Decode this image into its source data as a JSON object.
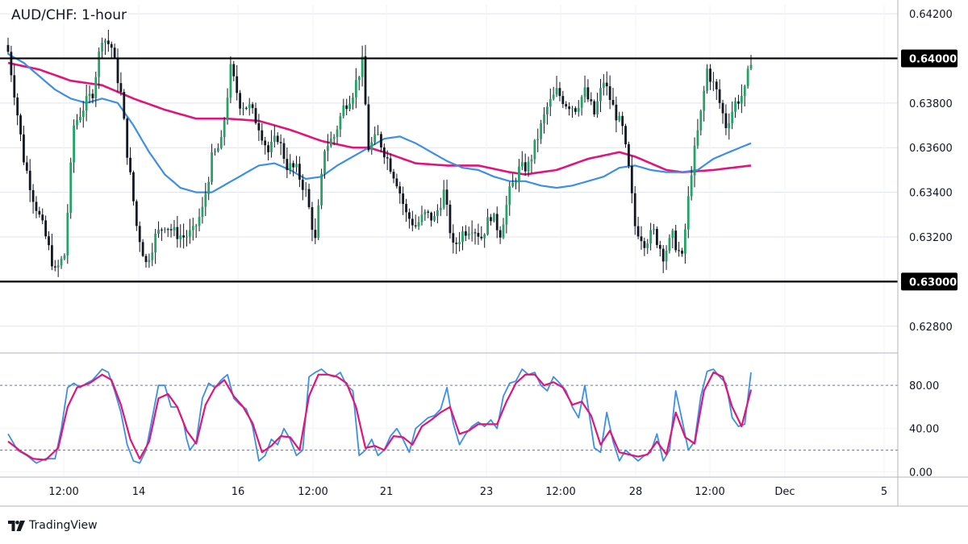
{
  "chart_title": "AUD/CHF: 1-hour",
  "brand": "TradingView",
  "colors": {
    "candle_up": "#26a269",
    "candle_down": "#131722",
    "ma_fast": "#3d8fe6",
    "ma_slow": "#e0157a",
    "stoch_k": "#3d8fe6",
    "stoch_d": "#e0157a",
    "level_line": "#000000",
    "grid": "#e0e3eb"
  },
  "chart_data": [
    {
      "type": "candlestick",
      "title": "AUD/CHF: 1-hour",
      "ylim": [
        0.6268,
        0.6424
      ],
      "y_ticks": [
        "0.64200",
        "0.63800",
        "0.63600",
        "0.63400",
        "0.63200",
        "0.62800"
      ],
      "x_ticks": [
        "12:00",
        "14",
        "16",
        "12:00",
        "21",
        "23",
        "12:00",
        "28",
        "12:00",
        "Dec",
        "5"
      ],
      "horizontal_levels": [
        {
          "value": 0.64,
          "label": "0.64000"
        },
        {
          "value": 0.63,
          "label": "0.63000"
        }
      ],
      "price_anchors": [
        [
          0,
          0.6403
        ],
        [
          2,
          0.6385
        ],
        [
          5,
          0.6355
        ],
        [
          8,
          0.6338
        ],
        [
          12,
          0.632
        ],
        [
          15,
          0.6304
        ],
        [
          18,
          0.6312
        ],
        [
          21,
          0.637
        ],
        [
          24,
          0.6378
        ],
        [
          27,
          0.6385
        ],
        [
          30,
          0.641
        ],
        [
          33,
          0.6405
        ],
        [
          36,
          0.6384
        ],
        [
          38,
          0.6358
        ],
        [
          41,
          0.6325
        ],
        [
          44,
          0.6308
        ],
        [
          47,
          0.632
        ],
        [
          50,
          0.6326
        ],
        [
          53,
          0.6322
        ],
        [
          56,
          0.632
        ],
        [
          59,
          0.6322
        ],
        [
          62,
          0.6332
        ],
        [
          65,
          0.6355
        ],
        [
          68,
          0.6362
        ],
        [
          71,
          0.6395
        ],
        [
          74,
          0.638
        ],
        [
          77,
          0.6378
        ],
        [
          80,
          0.637
        ],
        [
          83,
          0.6358
        ],
        [
          86,
          0.6365
        ],
        [
          89,
          0.6352
        ],
        [
          92,
          0.635
        ],
        [
          95,
          0.634
        ],
        [
          98,
          0.6318
        ],
        [
          101,
          0.636
        ],
        [
          104,
          0.6365
        ],
        [
          107,
          0.6378
        ],
        [
          110,
          0.6385
        ],
        [
          113,
          0.6398
        ],
        [
          115,
          0.636
        ],
        [
          118,
          0.6365
        ],
        [
          121,
          0.6355
        ],
        [
          124,
          0.6345
        ],
        [
          127,
          0.633
        ],
        [
          130,
          0.6325
        ],
        [
          133,
          0.633
        ],
        [
          136,
          0.6328
        ],
        [
          139,
          0.634
        ],
        [
          142,
          0.6315
        ],
        [
          145,
          0.6322
        ],
        [
          148,
          0.6325
        ],
        [
          151,
          0.632
        ],
        [
          154,
          0.633
        ],
        [
          157,
          0.6322
        ],
        [
          160,
          0.634
        ],
        [
          163,
          0.635
        ],
        [
          166,
          0.6352
        ],
        [
          169,
          0.6365
        ],
        [
          172,
          0.6378
        ],
        [
          175,
          0.6385
        ],
        [
          178,
          0.638
        ],
        [
          181,
          0.6378
        ],
        [
          184,
          0.6385
        ],
        [
          187,
          0.6375
        ],
        [
          190,
          0.639
        ],
        [
          193,
          0.6378
        ],
        [
          196,
          0.6368
        ],
        [
          198,
          0.635
        ],
        [
          200,
          0.6325
        ],
        [
          203,
          0.6318
        ],
        [
          206,
          0.6322
        ],
        [
          209,
          0.6312
        ],
        [
          212,
          0.632
        ],
        [
          215,
          0.631
        ],
        [
          218,
          0.635
        ],
        [
          221,
          0.6375
        ],
        [
          223,
          0.6395
        ],
        [
          226,
          0.6385
        ],
        [
          229,
          0.637
        ],
        [
          232,
          0.638
        ],
        [
          235,
          0.6385
        ],
        [
          237,
          0.64
        ]
      ],
      "ma_fast_anchors": [
        [
          0,
          0.6402
        ],
        [
          5,
          0.6398
        ],
        [
          10,
          0.6392
        ],
        [
          15,
          0.6386
        ],
        [
          20,
          0.6382
        ],
        [
          25,
          0.638
        ],
        [
          30,
          0.6382
        ],
        [
          35,
          0.638
        ],
        [
          40,
          0.637
        ],
        [
          45,
          0.6358
        ],
        [
          50,
          0.6348
        ],
        [
          55,
          0.6342
        ],
        [
          60,
          0.634
        ],
        [
          65,
          0.634
        ],
        [
          70,
          0.6344
        ],
        [
          75,
          0.6348
        ],
        [
          80,
          0.6352
        ],
        [
          85,
          0.6353
        ],
        [
          90,
          0.635
        ],
        [
          95,
          0.6346
        ],
        [
          100,
          0.6347
        ],
        [
          105,
          0.6352
        ],
        [
          110,
          0.6356
        ],
        [
          115,
          0.636
        ],
        [
          120,
          0.6364
        ],
        [
          125,
          0.6365
        ],
        [
          130,
          0.6362
        ],
        [
          135,
          0.6358
        ],
        [
          140,
          0.6354
        ],
        [
          145,
          0.6351
        ],
        [
          150,
          0.635
        ],
        [
          155,
          0.6347
        ],
        [
          160,
          0.6345
        ],
        [
          165,
          0.6345
        ],
        [
          170,
          0.6343
        ],
        [
          175,
          0.6342
        ],
        [
          180,
          0.6343
        ],
        [
          185,
          0.6345
        ],
        [
          190,
          0.6347
        ],
        [
          195,
          0.6351
        ],
        [
          200,
          0.6352
        ],
        [
          205,
          0.635
        ],
        [
          210,
          0.6349
        ],
        [
          215,
          0.6349
        ],
        [
          220,
          0.635
        ],
        [
          225,
          0.6355
        ],
        [
          230,
          0.6358
        ],
        [
          237,
          0.6362
        ]
      ],
      "ma_slow_anchors": [
        [
          0,
          0.6398
        ],
        [
          10,
          0.6395
        ],
        [
          20,
          0.639
        ],
        [
          30,
          0.6388
        ],
        [
          40,
          0.6382
        ],
        [
          50,
          0.6377
        ],
        [
          60,
          0.6373
        ],
        [
          70,
          0.6373
        ],
        [
          80,
          0.6372
        ],
        [
          90,
          0.6368
        ],
        [
          100,
          0.6363
        ],
        [
          110,
          0.636
        ],
        [
          115,
          0.636
        ],
        [
          120,
          0.6358
        ],
        [
          130,
          0.6353
        ],
        [
          140,
          0.6352
        ],
        [
          150,
          0.6352
        ],
        [
          160,
          0.6349
        ],
        [
          165,
          0.6348
        ],
        [
          175,
          0.635
        ],
        [
          185,
          0.6355
        ],
        [
          195,
          0.6358
        ],
        [
          200,
          0.6356
        ],
        [
          210,
          0.635
        ],
        [
          215,
          0.6349
        ],
        [
          225,
          0.635
        ],
        [
          237,
          0.6352
        ]
      ]
    },
    {
      "type": "line",
      "title": "",
      "ylim": [
        -5,
        110
      ],
      "y_ticks": [
        "80.00",
        "40.00",
        "0.00"
      ],
      "reference_lines": [
        80,
        20
      ],
      "stoch_k_anchors": [
        [
          0,
          35
        ],
        [
          3,
          20
        ],
        [
          6,
          15
        ],
        [
          9,
          8
        ],
        [
          12,
          12
        ],
        [
          15,
          12
        ],
        [
          17,
          40
        ],
        [
          19,
          78
        ],
        [
          21,
          82
        ],
        [
          23,
          78
        ],
        [
          25,
          82
        ],
        [
          27,
          85
        ],
        [
          30,
          95
        ],
        [
          32,
          92
        ],
        [
          34,
          75
        ],
        [
          36,
          55
        ],
        [
          38,
          25
        ],
        [
          40,
          10
        ],
        [
          42,
          8
        ],
        [
          44,
          20
        ],
        [
          46,
          50
        ],
        [
          48,
          80
        ],
        [
          50,
          80
        ],
        [
          52,
          60
        ],
        [
          54,
          60
        ],
        [
          56,
          45
        ],
        [
          57,
          30
        ],
        [
          58,
          20
        ],
        [
          60,
          28
        ],
        [
          62,
          68
        ],
        [
          64,
          82
        ],
        [
          66,
          78
        ],
        [
          68,
          85
        ],
        [
          70,
          90
        ],
        [
          72,
          68
        ],
        [
          74,
          62
        ],
        [
          76,
          58
        ],
        [
          78,
          42
        ],
        [
          80,
          10
        ],
        [
          82,
          15
        ],
        [
          84,
          30
        ],
        [
          86,
          25
        ],
        [
          88,
          40
        ],
        [
          90,
          30
        ],
        [
          92,
          15
        ],
        [
          94,
          20
        ],
        [
          96,
          88
        ],
        [
          98,
          92
        ],
        [
          100,
          95
        ],
        [
          102,
          90
        ],
        [
          104,
          88
        ],
        [
          106,
          92
        ],
        [
          108,
          80
        ],
        [
          110,
          75
        ],
        [
          112,
          15
        ],
        [
          114,
          20
        ],
        [
          116,
          30
        ],
        [
          118,
          15
        ],
        [
          120,
          20
        ],
        [
          122,
          33
        ],
        [
          124,
          40
        ],
        [
          126,
          30
        ],
        [
          128,
          18
        ],
        [
          130,
          40
        ],
        [
          132,
          45
        ],
        [
          134,
          50
        ],
        [
          136,
          52
        ],
        [
          138,
          58
        ],
        [
          140,
          78
        ],
        [
          142,
          45
        ],
        [
          144,
          25
        ],
        [
          146,
          35
        ],
        [
          148,
          42
        ],
        [
          150,
          46
        ],
        [
          152,
          42
        ],
        [
          154,
          48
        ],
        [
          156,
          40
        ],
        [
          158,
          70
        ],
        [
          160,
          82
        ],
        [
          162,
          84
        ],
        [
          164,
          95
        ],
        [
          166,
          90
        ],
        [
          168,
          92
        ],
        [
          170,
          80
        ],
        [
          172,
          75
        ],
        [
          174,
          88
        ],
        [
          176,
          82
        ],
        [
          178,
          75
        ],
        [
          180,
          60
        ],
        [
          182,
          50
        ],
        [
          184,
          80
        ],
        [
          186,
          42
        ],
        [
          187,
          22
        ],
        [
          189,
          18
        ],
        [
          191,
          55
        ],
        [
          193,
          28
        ],
        [
          195,
          10
        ],
        [
          197,
          20
        ],
        [
          199,
          15
        ],
        [
          201,
          10
        ],
        [
          203,
          15
        ],
        [
          205,
          18
        ],
        [
          207,
          35
        ],
        [
          209,
          10
        ],
        [
          211,
          20
        ],
        [
          213,
          75
        ],
        [
          215,
          48
        ],
        [
          217,
          20
        ],
        [
          219,
          28
        ],
        [
          221,
          70
        ],
        [
          223,
          93
        ],
        [
          225,
          95
        ],
        [
          227,
          88
        ],
        [
          229,
          82
        ],
        [
          231,
          50
        ],
        [
          233,
          42
        ],
        [
          235,
          44
        ],
        [
          237,
          92
        ]
      ],
      "stoch_d_anchors": [
        [
          0,
          28
        ],
        [
          4,
          19
        ],
        [
          8,
          12
        ],
        [
          12,
          11
        ],
        [
          16,
          22
        ],
        [
          19,
          60
        ],
        [
          22,
          78
        ],
        [
          26,
          82
        ],
        [
          30,
          90
        ],
        [
          33,
          85
        ],
        [
          36,
          62
        ],
        [
          39,
          30
        ],
        [
          42,
          12
        ],
        [
          45,
          28
        ],
        [
          48,
          68
        ],
        [
          51,
          72
        ],
        [
          54,
          60
        ],
        [
          57,
          38
        ],
        [
          60,
          26
        ],
        [
          63,
          62
        ],
        [
          66,
          78
        ],
        [
          69,
          85
        ],
        [
          72,
          70
        ],
        [
          75,
          60
        ],
        [
          78,
          45
        ],
        [
          81,
          18
        ],
        [
          84,
          24
        ],
        [
          87,
          33
        ],
        [
          90,
          32
        ],
        [
          93,
          20
        ],
        [
          96,
          70
        ],
        [
          99,
          90
        ],
        [
          102,
          90
        ],
        [
          105,
          88
        ],
        [
          108,
          82
        ],
        [
          111,
          60
        ],
        [
          114,
          22
        ],
        [
          117,
          24
        ],
        [
          120,
          20
        ],
        [
          123,
          33
        ],
        [
          126,
          32
        ],
        [
          129,
          25
        ],
        [
          132,
          42
        ],
        [
          135,
          48
        ],
        [
          138,
          55
        ],
        [
          141,
          60
        ],
        [
          144,
          35
        ],
        [
          147,
          38
        ],
        [
          150,
          44
        ],
        [
          153,
          44
        ],
        [
          156,
          44
        ],
        [
          159,
          65
        ],
        [
          162,
          82
        ],
        [
          165,
          90
        ],
        [
          168,
          90
        ],
        [
          171,
          80
        ],
        [
          174,
          83
        ],
        [
          177,
          78
        ],
        [
          180,
          62
        ],
        [
          183,
          65
        ],
        [
          186,
          52
        ],
        [
          189,
          25
        ],
        [
          192,
          38
        ],
        [
          195,
          18
        ],
        [
          198,
          16
        ],
        [
          201,
          14
        ],
        [
          204,
          16
        ],
        [
          207,
          28
        ],
        [
          210,
          16
        ],
        [
          213,
          55
        ],
        [
          216,
          32
        ],
        [
          219,
          26
        ],
        [
          222,
          75
        ],
        [
          225,
          92
        ],
        [
          228,
          88
        ],
        [
          231,
          60
        ],
        [
          234,
          42
        ],
        [
          237,
          76
        ]
      ]
    }
  ]
}
